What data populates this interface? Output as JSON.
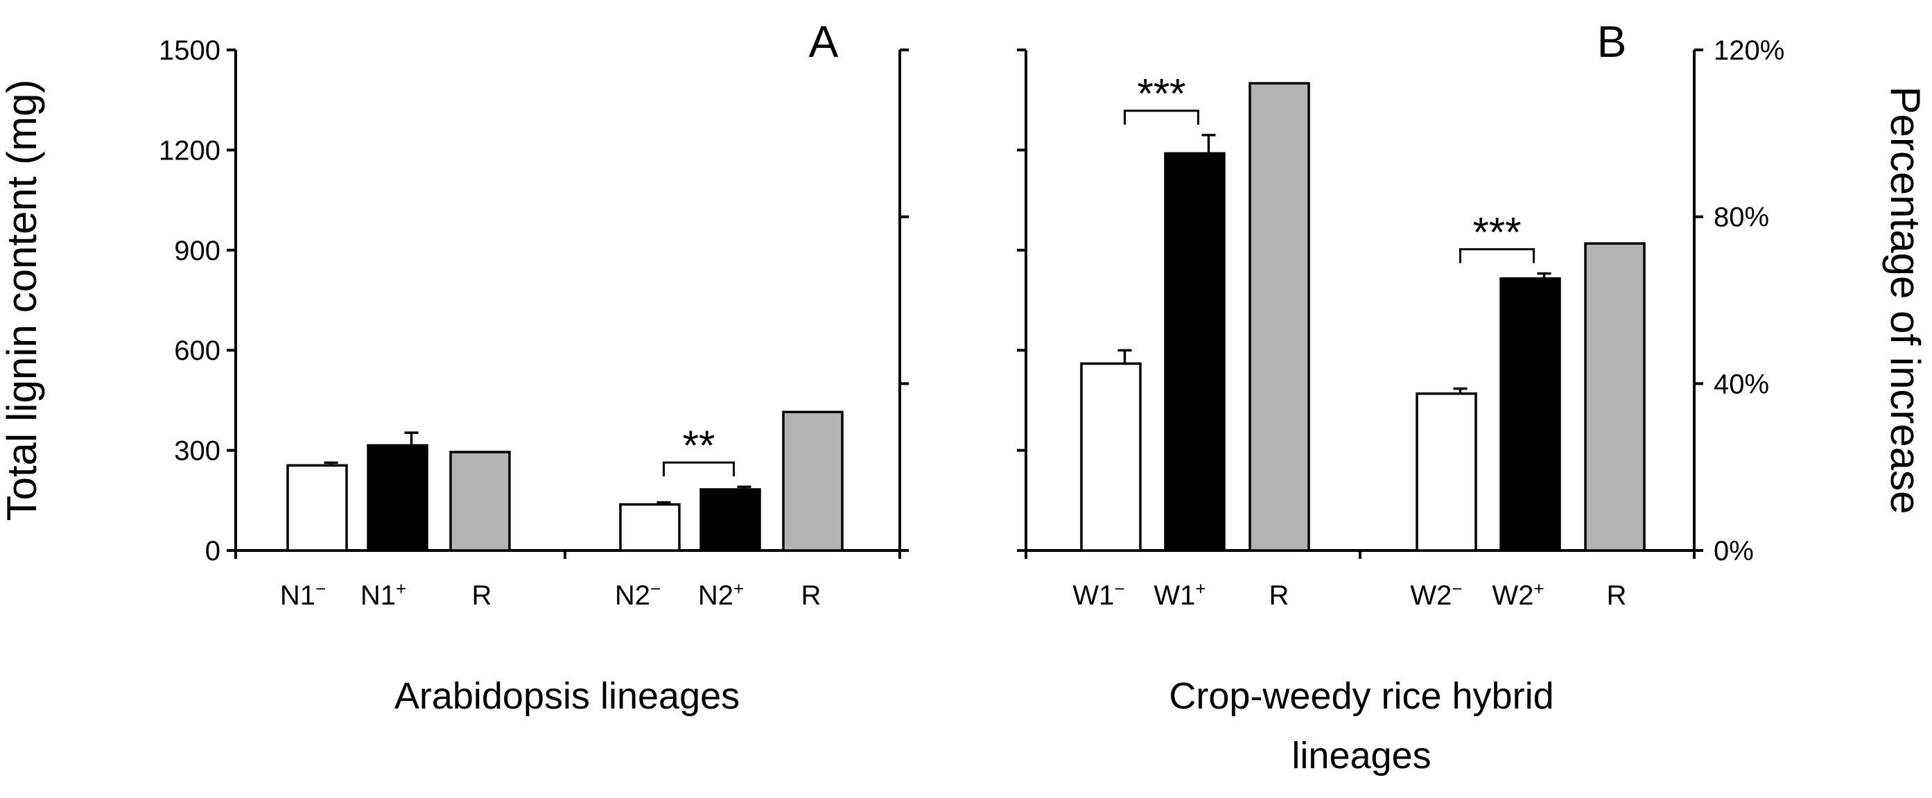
{
  "chart_data": [
    {
      "type": "bar",
      "panel": "A",
      "ylabel": "Total lignin content (mg)",
      "xlabel": "Arabidopsis lineages",
      "ylim": [
        0,
        1500
      ],
      "yticks": [
        "0",
        "300",
        "600",
        "900",
        "1200",
        "1500"
      ],
      "ylim_right": [
        0,
        120
      ],
      "yticks_right_unlabeled": true,
      "groups": [
        {
          "bars": [
            {
              "category": "N1",
              "sup": "−",
              "value": 255,
              "error": 8,
              "fill": "#ffffff"
            },
            {
              "category": "N1",
              "sup": "+",
              "value": 315,
              "error": 38,
              "fill": "#000000"
            },
            {
              "category": "R",
              "sup": "",
              "value": 295,
              "error": 0,
              "fill": "#b3b3b3"
            }
          ]
        },
        {
          "bars": [
            {
              "category": "N2",
              "sup": "−",
              "value": 138,
              "error": 6,
              "fill": "#ffffff"
            },
            {
              "category": "N2",
              "sup": "+",
              "value": 183,
              "error": 8,
              "fill": "#000000"
            },
            {
              "category": "R",
              "sup": "",
              "value": 415,
              "error": 0,
              "fill": "#b3b3b3"
            }
          ],
          "significance": "**"
        }
      ]
    },
    {
      "type": "bar",
      "panel": "B",
      "ylabel": "Percentage of increase",
      "xlabel": "Crop-weedy rice hybrid lineages",
      "ylim": [
        0,
        1500
      ],
      "yticks_left_unlabeled": true,
      "ylim_right": [
        0,
        120
      ],
      "yticks_right": [
        "0%",
        "40%",
        "80%",
        "120%"
      ],
      "groups": [
        {
          "bars": [
            {
              "category": "W1",
              "sup": "−",
              "value": 560,
              "error": 40,
              "fill": "#ffffff"
            },
            {
              "category": "W1",
              "sup": "+",
              "value": 1190,
              "error": 55,
              "fill": "#000000"
            },
            {
              "category": "R",
              "sup": "",
              "value": 1400,
              "error": 0,
              "fill": "#b3b3b3"
            }
          ],
          "significance": "***"
        },
        {
          "bars": [
            {
              "category": "W2",
              "sup": "−",
              "value": 470,
              "error": 15,
              "fill": "#ffffff"
            },
            {
              "category": "W2",
              "sup": "+",
              "value": 815,
              "error": 15,
              "fill": "#000000"
            },
            {
              "category": "R",
              "sup": "",
              "value": 920,
              "error": 0,
              "fill": "#b3b3b3"
            }
          ],
          "significance": "***"
        }
      ]
    }
  ]
}
